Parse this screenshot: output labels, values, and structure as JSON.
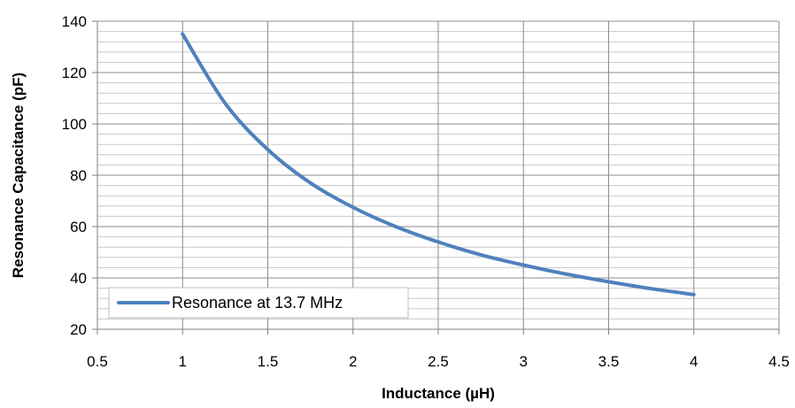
{
  "chart_data": {
    "type": "line",
    "xlabel": "Inductance (µH)",
    "ylabel": "Resonance Capacitance (pF)",
    "xlim": [
      0.5,
      4.5
    ],
    "ylim": [
      20,
      140
    ],
    "x_ticks": [
      0.5,
      1,
      1.5,
      2,
      2.5,
      3,
      3.5,
      4,
      4.5
    ],
    "y_ticks": [
      20,
      40,
      60,
      80,
      100,
      120,
      140
    ],
    "x_tick_labels": [
      "0.5",
      "1",
      "1.5",
      "2",
      "2.5",
      "3",
      "3.5",
      "4",
      "4.5"
    ],
    "y_tick_labels": [
      "20",
      "40",
      "60",
      "80",
      "100",
      "120",
      "140"
    ],
    "y_minor_step": 4,
    "grid": true,
    "legend_position": "bottom-left",
    "series": [
      {
        "name": "Resonance at 13.7 MHz",
        "color": "#4f81bd",
        "x": [
          1,
          1.25,
          1.5,
          1.75,
          2,
          2.25,
          2.5,
          2.75,
          3,
          3.25,
          3.5,
          3.75,
          4
        ],
        "y": [
          135,
          108,
          90,
          77,
          67.5,
          60,
          54,
          49,
          45,
          41.5,
          38.5,
          35.8,
          33.5
        ]
      }
    ]
  }
}
